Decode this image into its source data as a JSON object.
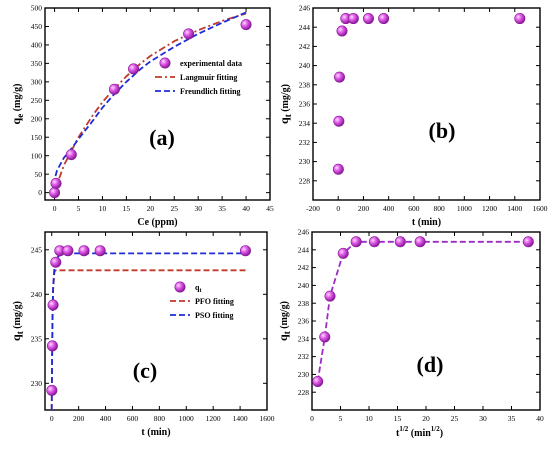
{
  "colors": {
    "langmuir": "#c0392b",
    "freundlich": "#1f2bd6",
    "pfo": "#c0392b",
    "pso": "#1f2bd6",
    "marker_fill": "#d63ee0",
    "marker_edge": "#8a1a98",
    "linear_fit": "#9b2cc4",
    "axis": "#000000"
  },
  "chart_data": [
    {
      "id": "a",
      "type": "scatter",
      "panel_label": "(a)",
      "xlabel": "Ce (ppm)",
      "ylabel_main": "q",
      "ylabel_sub": "e",
      "ylabel_tail": " (mg/g)",
      "xlim": [
        -2,
        45
      ],
      "ylim": [
        -20,
        500
      ],
      "xticks": [
        0,
        5,
        10,
        15,
        20,
        25,
        30,
        35,
        40,
        45
      ],
      "yticks": [
        0,
        50,
        100,
        150,
        200,
        250,
        300,
        350,
        400,
        450,
        500
      ],
      "legend_position": "right",
      "series": [
        {
          "name": "experimental data",
          "kind": "scatter",
          "x": [
            0,
            0.3,
            3.5,
            12.5,
            16.5,
            28,
            40
          ],
          "y": [
            0,
            25,
            103,
            280,
            335,
            430,
            455
          ]
        },
        {
          "name": "Langmuir fitting",
          "kind": "line",
          "style": "dashdot",
          "color_key": "langmuir",
          "x": [
            0,
            1,
            2,
            3,
            5,
            8,
            10,
            12,
            15,
            18,
            20,
            25,
            30,
            35,
            40
          ],
          "y": [
            0,
            40,
            75,
            100,
            150,
            210,
            245,
            275,
            315,
            350,
            370,
            410,
            440,
            465,
            485
          ]
        },
        {
          "name": "Freundlich fitting",
          "kind": "line",
          "style": "dash",
          "color_key": "freundlich",
          "x": [
            0.2,
            0.5,
            1,
            2,
            3,
            5,
            8,
            10,
            12,
            15,
            18,
            20,
            25,
            30,
            35,
            40
          ],
          "y": [
            45,
            60,
            72,
            95,
            110,
            145,
            195,
            230,
            260,
            300,
            335,
            355,
            395,
            430,
            460,
            488
          ]
        }
      ]
    },
    {
      "id": "b",
      "type": "scatter",
      "panel_label": "(b)",
      "xlabel": "t (min)",
      "ylabel_main": "q",
      "ylabel_sub": "t",
      "ylabel_tail": " (mg/g)",
      "xlim": [
        -200,
        1600
      ],
      "ylim": [
        226,
        246
      ],
      "xticks": [
        -200,
        0,
        200,
        400,
        600,
        800,
        1000,
        1200,
        1400,
        1600
      ],
      "yticks": [
        228,
        230,
        232,
        234,
        236,
        238,
        240,
        242,
        244,
        246
      ],
      "series": [
        {
          "name": "",
          "kind": "scatter",
          "x": [
            1,
            5,
            10,
            30,
            60,
            120,
            240,
            360,
            1440
          ],
          "y": [
            229.2,
            234.2,
            238.8,
            243.6,
            244.9,
            244.9,
            244.9,
            244.9,
            244.9
          ]
        }
      ]
    },
    {
      "id": "c",
      "type": "scatter",
      "panel_label": "(c)",
      "xlabel": "t (min)",
      "ylabel_main": "q",
      "ylabel_sub": "t",
      "ylabel_tail": " (mg/g)",
      "xlim": [
        -50,
        1600
      ],
      "ylim": [
        227,
        247
      ],
      "xticks": [
        0,
        200,
        400,
        600,
        800,
        1000,
        1200,
        1400,
        1600
      ],
      "yticks": [
        230,
        235,
        240,
        245
      ],
      "legend_position": "right",
      "series": [
        {
          "name": "q",
          "name_sub": "t",
          "kind": "scatter",
          "x": [
            1,
            5,
            10,
            30,
            60,
            120,
            240,
            360,
            1440
          ],
          "y": [
            229.2,
            234.2,
            238.8,
            243.6,
            244.9,
            244.9,
            244.9,
            244.9,
            244.9
          ]
        },
        {
          "name": "PFO fitting",
          "kind": "line",
          "style": "dash",
          "color_key": "pfo",
          "x": [
            0,
            5,
            10,
            20,
            30,
            50,
            80,
            120,
            200,
            400,
            800,
            1440
          ],
          "y": [
            227,
            236,
            240.5,
            242.5,
            242.7,
            242.7,
            242.7,
            242.7,
            242.7,
            242.7,
            242.7,
            242.7
          ]
        },
        {
          "name": "PSO fitting",
          "kind": "line",
          "style": "dash",
          "color_key": "pso",
          "x": [
            0,
            5,
            10,
            20,
            30,
            50,
            80,
            120,
            200,
            400,
            800,
            1440
          ],
          "y": [
            227,
            237,
            240.8,
            243,
            243.8,
            244.3,
            244.5,
            244.6,
            244.6,
            244.6,
            244.6,
            244.6
          ]
        }
      ]
    },
    {
      "id": "d",
      "type": "scatter",
      "panel_label": "(d)",
      "xlabel_main": "t",
      "xlabel_sup": "1/2",
      "xlabel_tail": " (min",
      "xlabel_tail_sup": "1/2",
      "xlabel_close": ")",
      "ylabel_main": "q",
      "ylabel_sub": "t",
      "ylabel_tail": " (mg/g)",
      "xlim": [
        0,
        40
      ],
      "ylim": [
        226,
        246
      ],
      "xticks": [
        0,
        5,
        10,
        15,
        20,
        25,
        30,
        35,
        40
      ],
      "yticks": [
        228,
        230,
        232,
        234,
        236,
        238,
        240,
        242,
        244,
        246
      ],
      "series": [
        {
          "name": "",
          "kind": "scatter+line",
          "style": "dash",
          "color_key": "linear_fit",
          "x": [
            1.0,
            2.24,
            3.16,
            5.48,
            7.75,
            10.95,
            15.49,
            18.97,
            37.95
          ],
          "y": [
            229.2,
            234.2,
            238.8,
            243.6,
            244.9,
            244.9,
            244.9,
            244.9,
            244.9
          ]
        }
      ]
    }
  ]
}
